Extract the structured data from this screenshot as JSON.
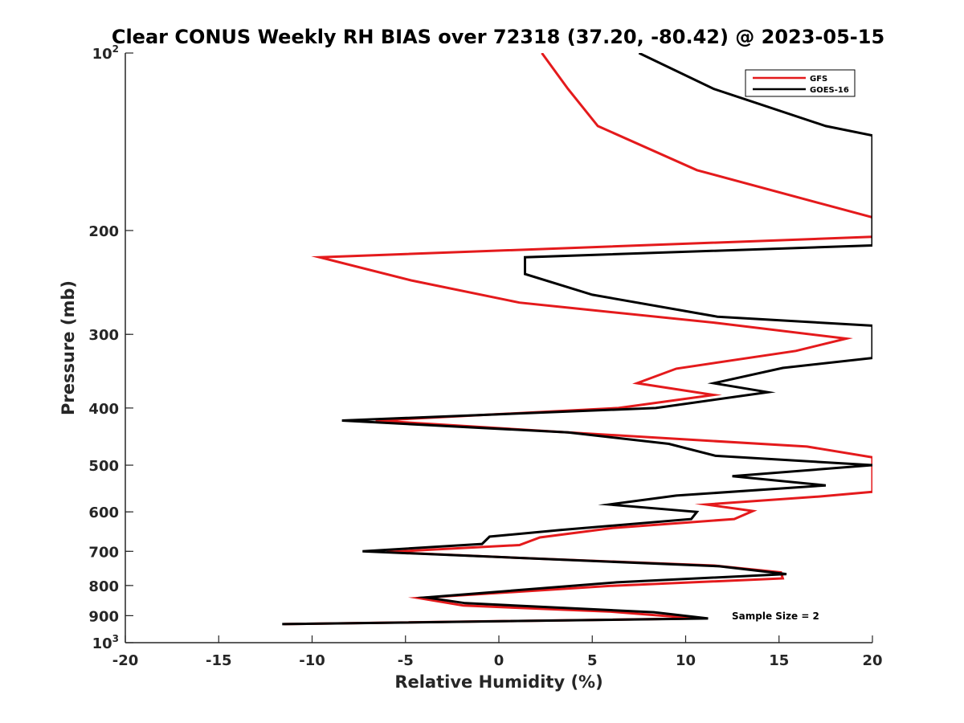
{
  "chart_data": {
    "type": "line",
    "title": "Clear CONUS Weekly RH BIAS over 72318 (37.20, -80.42) @ 2023-05-15",
    "xlabel": "Relative Humidity (%)",
    "ylabel": "Pressure (mb)",
    "xlim": [
      -20,
      20
    ],
    "ylim": [
      100,
      1000
    ],
    "y_scale": "log",
    "y_reversed": true,
    "grid": false,
    "legend_position": "top-right",
    "x_ticks": [
      "-20",
      "-15",
      "-10",
      "-5",
      "0",
      "5",
      "10",
      "15",
      "20"
    ],
    "y_ticks": [
      {
        "value": 100,
        "base": "10",
        "exp": "2"
      },
      {
        "value": 200,
        "label": "200"
      },
      {
        "value": 300,
        "label": "300"
      },
      {
        "value": 400,
        "label": "400"
      },
      {
        "value": 500,
        "label": "500"
      },
      {
        "value": 600,
        "label": "600"
      },
      {
        "value": 700,
        "label": "700"
      },
      {
        "value": 800,
        "label": "800"
      },
      {
        "value": 900,
        "label": "900"
      },
      {
        "value": 1000,
        "base": "10",
        "exp": "3"
      }
    ],
    "annotation": "Sample Size = 2",
    "series": [
      {
        "name": "GFS",
        "color": "#e41a1c",
        "points": [
          [
            2.3,
            100
          ],
          [
            3.7,
            115
          ],
          [
            5.3,
            133
          ],
          [
            10.6,
            158
          ],
          [
            20,
            190
          ],
          [
            20,
            205
          ],
          [
            -9.6,
            222
          ],
          [
            -4.7,
            243
          ],
          [
            1.1,
            265
          ],
          [
            11.7,
            287
          ],
          [
            18.6,
            305
          ],
          [
            15.9,
            320
          ],
          [
            9.5,
            343
          ],
          [
            7.4,
            363
          ],
          [
            11.5,
            380
          ],
          [
            6.4,
            400
          ],
          [
            -6.6,
            420
          ],
          [
            3.7,
            440
          ],
          [
            16.5,
            465
          ],
          [
            20,
            485
          ],
          [
            20,
            555
          ],
          [
            17.2,
            565
          ],
          [
            11.1,
            583
          ],
          [
            13.6,
            598
          ],
          [
            12.6,
            617
          ],
          [
            6.1,
            639
          ],
          [
            2.2,
            663
          ],
          [
            1.1,
            683
          ],
          [
            -6.0,
            702
          ],
          [
            1.0,
            718
          ],
          [
            11.5,
            740
          ],
          [
            15.1,
            760
          ],
          [
            15.2,
            778
          ],
          [
            6.0,
            801
          ],
          [
            -4.3,
            840
          ],
          [
            -1.9,
            865
          ],
          [
            6.0,
            886
          ],
          [
            10.6,
            910
          ],
          [
            -11.5,
            930
          ]
        ]
      },
      {
        "name": "GOES-16",
        "color": "#000000",
        "points": [
          [
            7.5,
            100
          ],
          [
            11.5,
            115
          ],
          [
            17.5,
            133
          ],
          [
            20,
            138
          ],
          [
            20,
            212
          ],
          [
            1.4,
            222
          ],
          [
            1.4,
            237
          ],
          [
            5.0,
            257
          ],
          [
            11.7,
            280
          ],
          [
            20,
            290
          ],
          [
            20,
            329
          ],
          [
            15.2,
            342
          ],
          [
            11.5,
            363
          ],
          [
            14.4,
            376
          ],
          [
            8.4,
            400
          ],
          [
            -8.4,
            420
          ],
          [
            3.7,
            440
          ],
          [
            9.1,
            460
          ],
          [
            11.6,
            482
          ],
          [
            20,
            500
          ],
          [
            12.5,
            522
          ],
          [
            17.5,
            541
          ],
          [
            9.5,
            563
          ],
          [
            5.9,
            583
          ],
          [
            10.6,
            600
          ],
          [
            10.3,
            617
          ],
          [
            3.3,
            644
          ],
          [
            -0.5,
            661
          ],
          [
            -0.9,
            680
          ],
          [
            -7.3,
            700
          ],
          [
            11.8,
            742
          ],
          [
            15.4,
            765
          ],
          [
            6.3,
            790
          ],
          [
            -3.9,
            838
          ],
          [
            -1.8,
            857
          ],
          [
            8.3,
            888
          ],
          [
            11.2,
            910
          ],
          [
            -11.6,
            930
          ]
        ]
      }
    ]
  }
}
